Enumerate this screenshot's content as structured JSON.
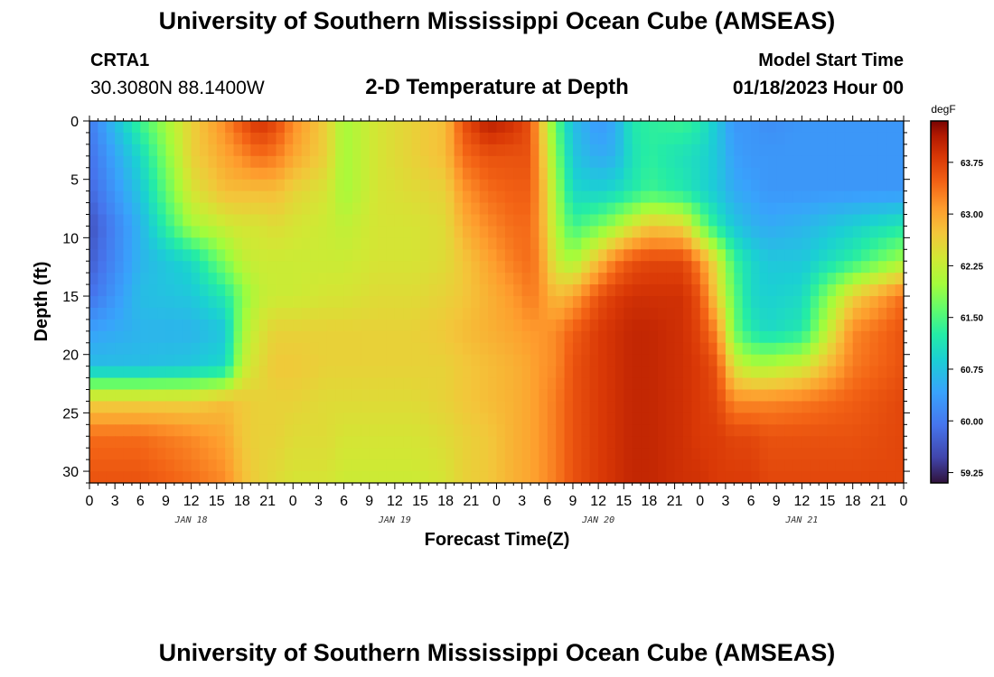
{
  "header": {
    "title": "University of Southern Mississippi Ocean Cube (AMSEAS)",
    "station_id": "CRTA1",
    "station_coords": "30.3080N  88.1400W",
    "plot_title": "2-D Temperature at Depth",
    "start_label": "Model Start Time",
    "start_value": "01/18/2023 Hour 00"
  },
  "footer": {
    "title": "University of Southern Mississippi Ocean Cube (AMSEAS)"
  },
  "chart_data": {
    "type": "heatmap",
    "xlabel": "Forecast Time(Z)",
    "ylabel": "Depth (ft)",
    "x_unit": "hours since model start",
    "xlim": [
      0,
      96
    ],
    "ylim": [
      0,
      31
    ],
    "y_inverted": true,
    "x_tick_labels": [
      "0",
      "3",
      "6",
      "9",
      "12",
      "15",
      "18",
      "21",
      "0",
      "3",
      "6",
      "9",
      "12",
      "15",
      "18",
      "21",
      "0",
      "3",
      "6",
      "9",
      "12",
      "15",
      "18",
      "21",
      "0",
      "3",
      "6",
      "9",
      "12",
      "15",
      "18",
      "21",
      "0"
    ],
    "x_ticks": [
      0,
      3,
      6,
      9,
      12,
      15,
      18,
      21,
      24,
      27,
      30,
      33,
      36,
      39,
      42,
      45,
      48,
      51,
      54,
      57,
      60,
      63,
      66,
      69,
      72,
      75,
      78,
      81,
      84,
      87,
      90,
      93,
      96
    ],
    "y_ticks": [
      0,
      5,
      10,
      15,
      20,
      25,
      30
    ],
    "date_labels": [
      {
        "x": 12,
        "label": "JAN 18"
      },
      {
        "x": 36,
        "label": "JAN 19"
      },
      {
        "x": 60,
        "label": "JAN 20"
      },
      {
        "x": 84,
        "label": "JAN 21"
      }
    ],
    "colorbar": {
      "unit": "degF",
      "min": 59.1,
      "max": 64.35,
      "tick_labels": [
        "63.75",
        "63.00",
        "62.25",
        "61.50",
        "60.75",
        "60.00",
        "59.25"
      ],
      "ticks": [
        63.75,
        63.0,
        62.25,
        61.5,
        60.75,
        60.0,
        59.25
      ]
    },
    "grid": false,
    "x_columns": [
      0,
      6,
      12,
      16,
      18,
      20,
      22,
      24,
      28,
      30,
      34,
      38,
      42,
      44,
      47,
      50,
      52,
      53,
      55,
      57,
      60,
      62,
      64,
      66,
      70,
      72,
      74,
      76,
      78,
      80,
      84,
      90,
      96
    ],
    "depth_rows": [
      0,
      3,
      6,
      9,
      12,
      15,
      18,
      21,
      24,
      27,
      31
    ],
    "values": [
      [
        60.0,
        61.4,
        62.6,
        63.2,
        63.6,
        63.9,
        63.7,
        63.2,
        62.6,
        62.0,
        62.4,
        62.6,
        62.8,
        63.6,
        64.1,
        63.9,
        63.6,
        62.9,
        61.6,
        60.7,
        60.3,
        60.5,
        61.2,
        61.3,
        61.4,
        61.2,
        60.8,
        60.3,
        60.3,
        60.2,
        60.3,
        60.3,
        60.3
      ],
      [
        59.9,
        61.0,
        62.6,
        63.0,
        63.2,
        63.4,
        63.3,
        63.0,
        62.6,
        62.0,
        62.4,
        62.6,
        62.8,
        63.4,
        63.6,
        63.6,
        63.6,
        63.0,
        61.8,
        60.8,
        60.5,
        60.6,
        61.1,
        61.3,
        61.1,
        61.0,
        60.8,
        60.4,
        60.3,
        60.3,
        60.3,
        60.3,
        60.3
      ],
      [
        59.8,
        60.8,
        62.4,
        62.8,
        62.8,
        62.8,
        62.8,
        62.6,
        62.4,
        62.0,
        62.4,
        62.5,
        62.6,
        63.1,
        63.4,
        63.5,
        63.5,
        63.1,
        62.0,
        61.0,
        60.9,
        61.0,
        61.2,
        61.4,
        61.2,
        61.0,
        60.8,
        60.5,
        60.4,
        60.3,
        60.3,
        60.3,
        60.3
      ],
      [
        59.6,
        60.6,
        62.0,
        62.3,
        62.4,
        62.4,
        62.5,
        62.4,
        62.3,
        62.2,
        62.4,
        62.4,
        62.5,
        62.9,
        63.2,
        63.4,
        63.4,
        63.1,
        62.1,
        61.4,
        61.7,
        62.0,
        62.4,
        62.7,
        62.6,
        61.8,
        61.2,
        60.8,
        60.6,
        60.5,
        60.6,
        60.9,
        61.2
      ],
      [
        59.7,
        60.6,
        61.0,
        61.8,
        62.2,
        62.3,
        62.3,
        62.3,
        62.3,
        62.3,
        62.4,
        62.4,
        62.5,
        62.7,
        63.0,
        63.3,
        63.4,
        63.2,
        62.3,
        62.0,
        62.8,
        63.3,
        63.6,
        63.7,
        63.7,
        63.2,
        62.4,
        61.4,
        61.0,
        60.8,
        60.8,
        61.3,
        62.0
      ],
      [
        59.9,
        60.7,
        60.8,
        61.2,
        61.8,
        62.2,
        62.3,
        62.3,
        62.4,
        62.4,
        62.5,
        62.5,
        62.6,
        62.7,
        62.9,
        63.1,
        63.3,
        63.2,
        62.8,
        63.0,
        63.6,
        63.8,
        63.9,
        63.9,
        63.9,
        63.6,
        62.6,
        61.6,
        61.0,
        60.9,
        61.0,
        62.6,
        63.4
      ],
      [
        60.4,
        60.6,
        60.6,
        60.8,
        62.0,
        62.4,
        62.6,
        62.6,
        62.6,
        62.6,
        62.6,
        62.6,
        62.7,
        62.8,
        62.9,
        63.0,
        63.1,
        63.1,
        63.2,
        63.5,
        63.8,
        63.9,
        64.0,
        64.0,
        63.9,
        63.7,
        63.2,
        61.7,
        61.2,
        61.0,
        61.2,
        63.2,
        63.6
      ],
      [
        60.7,
        60.7,
        60.8,
        61.0,
        62.2,
        62.5,
        62.7,
        62.7,
        62.6,
        62.6,
        62.6,
        62.6,
        62.6,
        62.7,
        62.8,
        62.9,
        63.0,
        63.1,
        63.2,
        63.6,
        63.8,
        63.9,
        64.0,
        64.0,
        63.9,
        63.8,
        63.6,
        62.4,
        62.1,
        62.1,
        62.3,
        63.3,
        63.6
      ],
      [
        62.6,
        62.6,
        62.6,
        62.8,
        62.7,
        62.6,
        62.6,
        62.6,
        62.5,
        62.5,
        62.5,
        62.5,
        62.6,
        62.7,
        62.8,
        62.9,
        63.0,
        63.1,
        63.3,
        63.6,
        63.8,
        63.9,
        64.0,
        64.0,
        63.9,
        63.8,
        63.7,
        63.2,
        63.2,
        63.2,
        63.3,
        63.5,
        63.7
      ],
      [
        63.4,
        63.4,
        63.2,
        63.0,
        62.7,
        62.6,
        62.6,
        62.5,
        62.5,
        62.4,
        62.4,
        62.4,
        62.5,
        62.6,
        62.7,
        62.9,
        63.0,
        63.1,
        63.3,
        63.6,
        63.8,
        63.9,
        64.0,
        64.0,
        63.9,
        63.8,
        63.8,
        63.7,
        63.7,
        63.6,
        63.6,
        63.6,
        63.7
      ],
      [
        63.6,
        63.6,
        63.4,
        63.2,
        62.8,
        62.6,
        62.5,
        62.4,
        62.4,
        62.3,
        62.3,
        62.3,
        62.4,
        62.6,
        62.7,
        62.9,
        63.0,
        63.1,
        63.3,
        63.6,
        63.8,
        63.9,
        64.0,
        64.0,
        63.9,
        63.9,
        63.8,
        63.8,
        63.8,
        63.7,
        63.7,
        63.7,
        63.7
      ]
    ]
  }
}
